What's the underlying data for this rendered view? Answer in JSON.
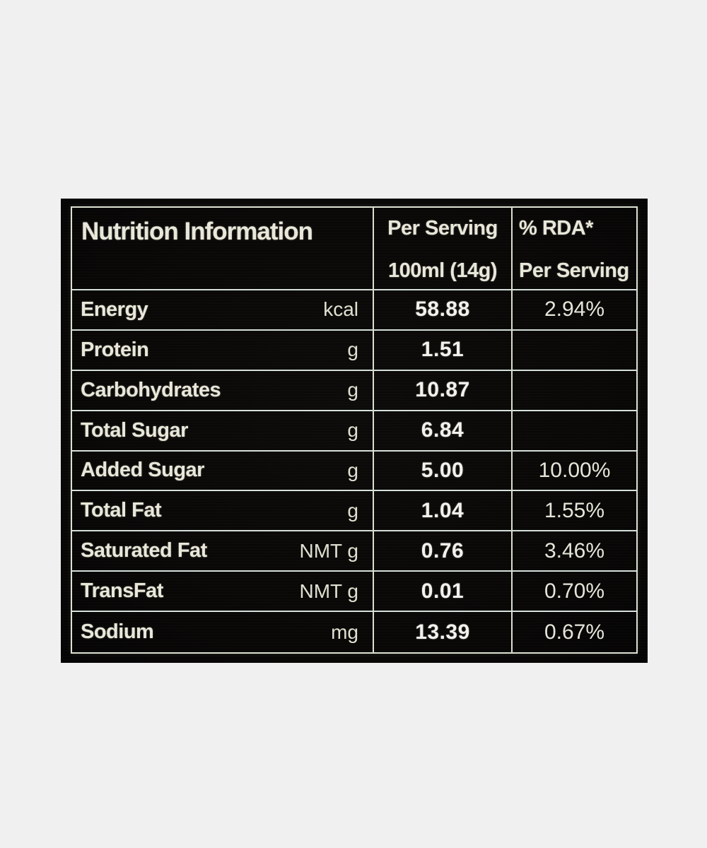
{
  "page": {
    "background_color": "#f0f0f0",
    "panel_background_color": "#0a0907",
    "border_color": "#dde3d2",
    "label_text_color": "#eae9db",
    "value_text_color": "#f4f3ee"
  },
  "table": {
    "header": {
      "title": "Nutrition Information",
      "per_serving_line1": "Per Serving",
      "per_serving_line2": "100ml (14g)",
      "rda_line1": "% RDA*",
      "rda_line2": "Per Serving"
    },
    "rows": [
      {
        "label": "Energy",
        "unit": "kcal",
        "per_serving": "58.88",
        "rda": "2.94%"
      },
      {
        "label": "Protein",
        "unit": "g",
        "per_serving": "1.51",
        "rda": ""
      },
      {
        "label": "Carbohydrates",
        "unit": "g",
        "per_serving": "10.87",
        "rda": ""
      },
      {
        "label": "Total Sugar",
        "unit": "g",
        "per_serving": "6.84",
        "rda": ""
      },
      {
        "label": "Added Sugar",
        "unit": "g",
        "per_serving": "5.00",
        "rda": "10.00%"
      },
      {
        "label": "Total Fat",
        "unit": "g",
        "per_serving": "1.04",
        "rda": "1.55%"
      },
      {
        "label": "Saturated Fat",
        "unit": "NMT g",
        "per_serving": "0.76",
        "rda": "3.46%"
      },
      {
        "label": "TransFat",
        "unit": "NMT g",
        "per_serving": "0.01",
        "rda": "0.70%"
      },
      {
        "label": "Sodium",
        "unit": "mg",
        "per_serving": "13.39",
        "rda": "0.67%"
      }
    ]
  }
}
